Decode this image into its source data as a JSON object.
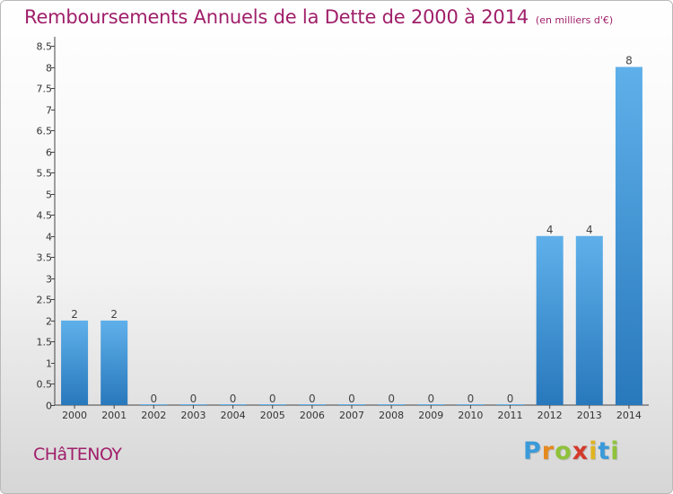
{
  "header": {
    "title": "Remboursements Annuels de la Dette de 2000 à 2014",
    "subtitle": "(en milliers d'€)"
  },
  "footer": {
    "city": "CHâTENOY",
    "logo_letters": [
      {
        "char": "P",
        "color": "#3a9ad9"
      },
      {
        "char": "r",
        "color": "#e58a1f"
      },
      {
        "char": "o",
        "color": "#8fc23a"
      },
      {
        "char": "x",
        "color": "#d33a2c"
      },
      {
        "char": "i",
        "color": "#e0b41f"
      },
      {
        "char": "t",
        "color": "#3a9ad9"
      },
      {
        "char": "i",
        "color": "#8fc23a"
      }
    ]
  },
  "colors": {
    "bar_top": "#5fb0ea",
    "bar_bottom": "#2878bc",
    "accent": "#a01f6a"
  },
  "chart_data": {
    "type": "bar",
    "categories": [
      "2000",
      "2001",
      "2002",
      "2003",
      "2004",
      "2005",
      "2006",
      "2007",
      "2008",
      "2009",
      "2010",
      "2011",
      "2012",
      "2013",
      "2014"
    ],
    "values": [
      2,
      2,
      0,
      0,
      0,
      0,
      0,
      0,
      0,
      0,
      0,
      0,
      4,
      4,
      8
    ],
    "data_labels": [
      "2",
      "2",
      "0",
      "0",
      "0",
      "0",
      "0",
      "0",
      "0",
      "0",
      "0",
      "0",
      "4",
      "4",
      "8"
    ],
    "ylim": [
      0,
      8.5
    ],
    "yticks": [
      0,
      0.5,
      1,
      1.5,
      2,
      2.5,
      3,
      3.5,
      4,
      4.5,
      5,
      5.5,
      6,
      6.5,
      7,
      7.5,
      8,
      8.5
    ],
    "ytick_labels": [
      "0",
      "0.5",
      "1",
      "1.5",
      "2",
      "2.5",
      "3",
      "3.5",
      "4",
      "4.5",
      "5",
      "5.5",
      "6",
      "6.5",
      "7",
      "7.5",
      "8",
      "8.5"
    ],
    "grid": false,
    "legend": "none"
  }
}
